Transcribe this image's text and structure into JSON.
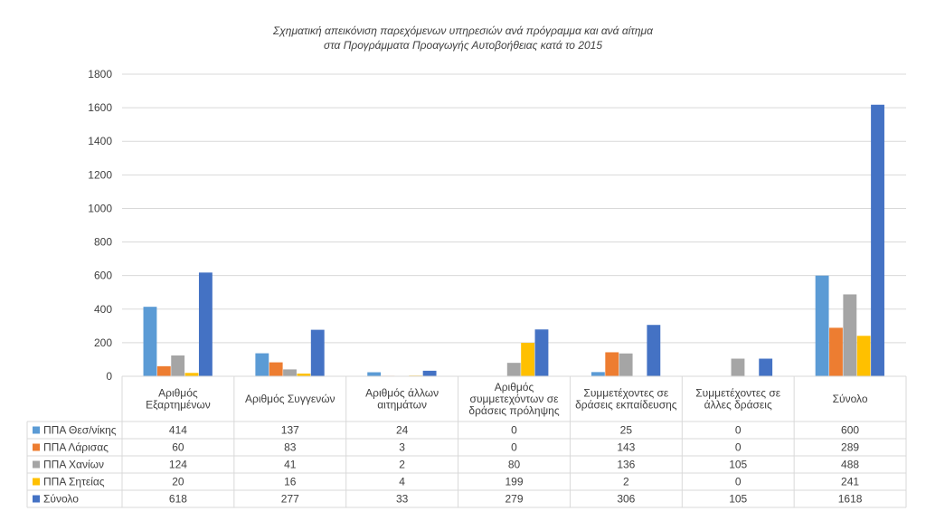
{
  "chart_data": {
    "type": "bar",
    "title_lines": [
      "Σχηματική απεικόνιση παρεχόμενων υπηρεσιών ανά πρόγραμμα και ανά αίτημα",
      "στα Προγράμματα Προαγωγής Αυτοβοήθειας κατά το 2015"
    ],
    "categories": [
      [
        "Αριθμός",
        "Εξαρτημένων"
      ],
      [
        "Αριθμός Συγγενών"
      ],
      [
        "Αριθμός άλλων",
        "αιτημάτων"
      ],
      [
        "Αριθμός",
        "συμμετεχόντων σε",
        "δράσεις πρόληψης"
      ],
      [
        "Συμμετέχοντες σε",
        "δράσεις εκπαίδευσης"
      ],
      [
        "Συμμετέχοντες σε",
        "άλλες δράσεις"
      ],
      [
        "Σύνολο"
      ]
    ],
    "series": [
      {
        "name": "ΠΠΑ Θεσ/νίκης",
        "color": "#5b9bd5",
        "values": [
          414,
          137,
          24,
          0,
          25,
          0,
          600
        ]
      },
      {
        "name": "ΠΠΑ Λάρισας",
        "color": "#ed7d31",
        "values": [
          60,
          83,
          3,
          0,
          143,
          0,
          289
        ]
      },
      {
        "name": "ΠΠΑ Χανίων",
        "color": "#a5a5a5",
        "values": [
          124,
          41,
          2,
          80,
          136,
          105,
          488
        ]
      },
      {
        "name": "ΠΠΑ Σητείας",
        "color": "#ffc000",
        "values": [
          20,
          16,
          4,
          199,
          2,
          0,
          241
        ]
      },
      {
        "name": "Σύνολο",
        "color": "#4472c4",
        "values": [
          618,
          277,
          33,
          279,
          306,
          105,
          1618
        ]
      }
    ],
    "ylim": [
      0,
      1800
    ],
    "yticks": [
      0,
      200,
      400,
      600,
      800,
      1000,
      1200,
      1400,
      1600,
      1800
    ],
    "grid": true,
    "legend": "data-table"
  }
}
